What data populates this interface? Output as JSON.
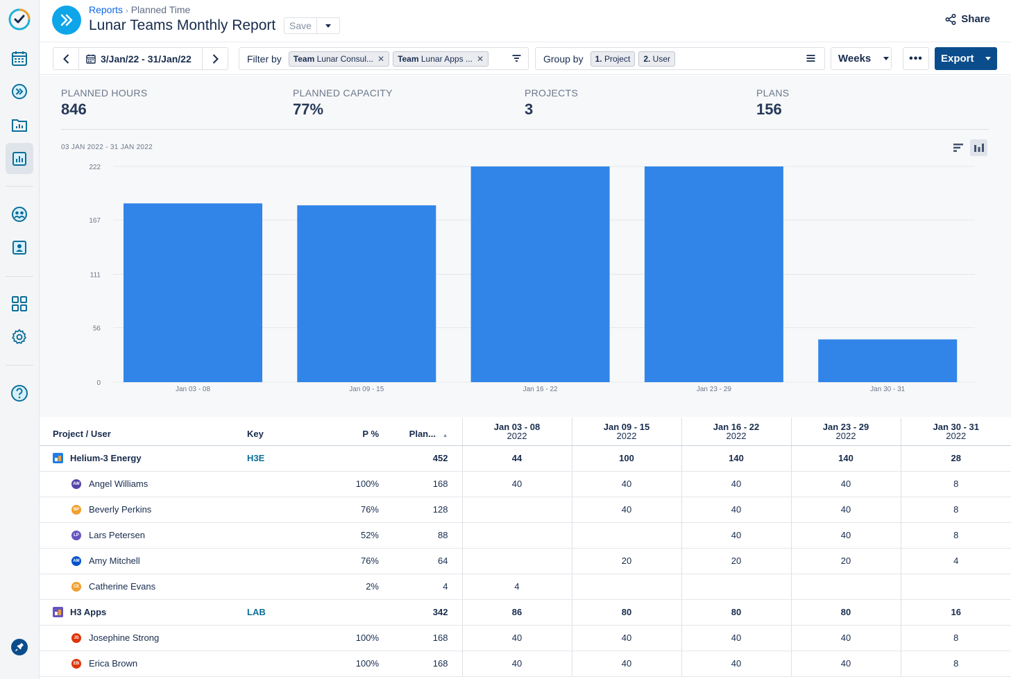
{
  "breadcrumb": {
    "root": "Reports",
    "current": "Planned Time"
  },
  "title": "Lunar Teams Monthly Report",
  "save_label": "Save",
  "share_label": "Share",
  "toolbar": {
    "date_range": "3/Jan/22 - 31/Jan/22",
    "filter_label": "Filter by",
    "filters": [
      {
        "bold": "Team",
        "text": "Lunar Consul..."
      },
      {
        "bold": "Team",
        "text": "Lunar Apps ..."
      }
    ],
    "group_label": "Group by",
    "groups": [
      {
        "bold": "1.",
        "text": "Project"
      },
      {
        "bold": "2.",
        "text": "User"
      }
    ],
    "interval": "Weeks",
    "more": "•••",
    "export_label": "Export"
  },
  "stats": [
    {
      "label": "PLANNED HOURS",
      "value": "846"
    },
    {
      "label": "PLANNED CAPACITY",
      "value": "77%"
    },
    {
      "label": "PROJECTS",
      "value": "3"
    },
    {
      "label": "PLANS",
      "value": "156"
    }
  ],
  "range_label": "03 JAN 2022 - 31 JAN 2022",
  "chart_data": {
    "type": "bar",
    "title": "03 JAN 2022 - 31 JAN 2022",
    "xlabel": "",
    "ylabel": "",
    "categories": [
      "Jan 03 - 08",
      "Jan 09 - 15",
      "Jan 16 - 22",
      "Jan 23 - 29",
      "Jan 30 - 31"
    ],
    "values": [
      184,
      182,
      222,
      222,
      44
    ],
    "yticks": [
      0,
      56,
      111,
      167,
      222
    ],
    "ylim": [
      0,
      222
    ],
    "color": "#3185e9",
    "grid": true
  },
  "table": {
    "headers": {
      "name": "Project / User",
      "key": "Key",
      "pct": "P %",
      "planned": "Plan..."
    },
    "weeks": [
      {
        "range": "Jan 03 - 08",
        "year": "2022"
      },
      {
        "range": "Jan 09 - 15",
        "year": "2022"
      },
      {
        "range": "Jan 16 - 22",
        "year": "2022"
      },
      {
        "range": "Jan 23 - 29",
        "year": "2022"
      },
      {
        "range": "Jan 30 - 31",
        "year": "2022"
      }
    ],
    "rows": [
      {
        "type": "project",
        "name": "Helium-3 Energy",
        "key": "H3E",
        "pct": "",
        "planned": "452",
        "weeks": [
          "44",
          "100",
          "140",
          "140",
          "28"
        ],
        "color": "#1e7ee8"
      },
      {
        "type": "user",
        "name": "Angel Williams",
        "initials": "AW",
        "color": "#5243aa",
        "pct": "100%",
        "planned": "168",
        "weeks": [
          "40",
          "40",
          "40",
          "40",
          "8"
        ]
      },
      {
        "type": "user",
        "name": "Beverly Perkins",
        "initials": "BP",
        "color": "#f0a030",
        "pct": "76%",
        "planned": "128",
        "weeks": [
          "",
          "40",
          "40",
          "40",
          "8"
        ]
      },
      {
        "type": "user",
        "name": "Lars Petersen",
        "initials": "LP",
        "color": "#6554c0",
        "pct": "52%",
        "planned": "88",
        "weeks": [
          "",
          "",
          "40",
          "40",
          "8"
        ]
      },
      {
        "type": "user",
        "name": "Amy Mitchell",
        "initials": "AM",
        "color": "#0052cc",
        "pct": "76%",
        "planned": "64",
        "weeks": [
          "",
          "20",
          "20",
          "20",
          "4"
        ]
      },
      {
        "type": "user",
        "name": "Catherine Evans",
        "initials": "CE",
        "color": "#f0a030",
        "pct": "2%",
        "planned": "4",
        "weeks": [
          "4",
          "",
          "",
          "",
          ""
        ]
      },
      {
        "type": "project",
        "name": "H3 Apps",
        "key": "LAB",
        "pct": "",
        "planned": "342",
        "weeks": [
          "86",
          "80",
          "80",
          "80",
          "16"
        ],
        "color": "#6554c0"
      },
      {
        "type": "user",
        "name": "Josephine Strong",
        "initials": "JS",
        "color": "#de350b",
        "pct": "100%",
        "planned": "168",
        "weeks": [
          "40",
          "40",
          "40",
          "40",
          "8"
        ]
      },
      {
        "type": "user",
        "name": "Erica Brown",
        "initials": "EB",
        "color": "#de350b",
        "pct": "100%",
        "planned": "168",
        "weeks": [
          "40",
          "40",
          "40",
          "40",
          "8"
        ]
      }
    ]
  }
}
